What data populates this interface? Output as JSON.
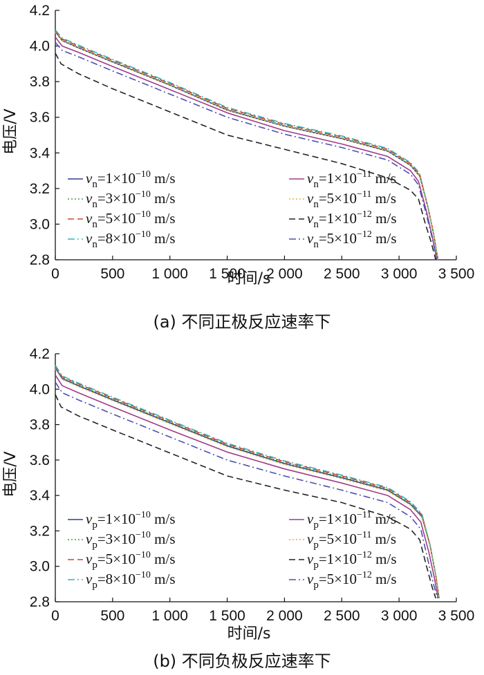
{
  "chart_data": [
    {
      "type": "line",
      "caption": "(a)  不同正极反应速率下",
      "xlabel": "时间/s",
      "ylabel": "电压/V",
      "xlim": [
        0,
        3500
      ],
      "ylim": [
        2.8,
        4.2
      ],
      "xticks": [
        0,
        500,
        1000,
        1500,
        2000,
        2500,
        3000,
        3500
      ],
      "xtick_labels": [
        "0",
        "500",
        "1 000",
        "1 500",
        "2 000",
        "2 500",
        "3 000",
        "3 500"
      ],
      "yticks": [
        2.8,
        3.0,
        3.2,
        3.4,
        3.6,
        3.8,
        4.0,
        4.2
      ],
      "ytick_labels": [
        "2.8",
        "3.0",
        "3.2",
        "3.4",
        "3.6",
        "3.8",
        "4.0",
        "4.2"
      ],
      "legend_position": "lower-left",
      "series": [
        {
          "name": "vn=1×10−10 m/s",
          "sym": "v",
          "sub": "n",
          "coef": "1",
          "exp": "−10",
          "color": "#2a3f8f",
          "dash": "solid",
          "x": [
            0,
            60,
            200,
            500,
            1000,
            1500,
            2000,
            2500,
            2900,
            3100,
            3180,
            3250,
            3300,
            3340
          ],
          "y": [
            4.08,
            4.03,
            3.99,
            3.91,
            3.78,
            3.64,
            3.55,
            3.48,
            3.41,
            3.33,
            3.27,
            3.1,
            2.95,
            2.8
          ]
        },
        {
          "name": "vn=3×10−10 m/s",
          "sym": "v",
          "sub": "n",
          "coef": "3",
          "exp": "−10",
          "color": "#3aa53a",
          "dash": "dot",
          "x": [
            0,
            60,
            200,
            500,
            1000,
            1500,
            2000,
            2500,
            2900,
            3100,
            3180,
            3250,
            3300,
            3340
          ],
          "y": [
            4.08,
            4.035,
            3.995,
            3.915,
            3.785,
            3.645,
            3.555,
            3.485,
            3.415,
            3.335,
            3.275,
            3.1,
            2.95,
            2.8
          ]
        },
        {
          "name": "vn=5×10−10 m/s",
          "sym": "v",
          "sub": "n",
          "coef": "5",
          "exp": "−10",
          "color": "#d94030",
          "dash": "dash",
          "x": [
            0,
            60,
            200,
            500,
            1000,
            1500,
            2000,
            2500,
            2900,
            3100,
            3180,
            3250,
            3300,
            3340
          ],
          "y": [
            4.085,
            4.04,
            4.0,
            3.92,
            3.79,
            3.65,
            3.56,
            3.49,
            3.42,
            3.34,
            3.28,
            3.1,
            2.95,
            2.8
          ]
        },
        {
          "name": "vn=8×10−10 m/s",
          "sym": "v",
          "sub": "n",
          "coef": "8",
          "exp": "−10",
          "color": "#3ab0b8",
          "dash": "dashdot",
          "x": [
            0,
            60,
            200,
            500,
            1000,
            1500,
            2000,
            2500,
            2900,
            3100,
            3180,
            3250,
            3300,
            3340
          ],
          "y": [
            4.09,
            4.045,
            4.005,
            3.925,
            3.795,
            3.655,
            3.565,
            3.495,
            3.425,
            3.345,
            3.285,
            3.1,
            2.95,
            2.8
          ]
        },
        {
          "name": "vn=1×10−11 m/s",
          "sym": "v",
          "sub": "n",
          "coef": "1",
          "exp": "−11",
          "color": "#a03a8a",
          "dash": "solid",
          "x": [
            0,
            60,
            200,
            500,
            1000,
            1500,
            2000,
            2500,
            2900,
            3100,
            3170,
            3240,
            3290,
            3330
          ],
          "y": [
            4.05,
            4.0,
            3.965,
            3.885,
            3.755,
            3.625,
            3.525,
            3.45,
            3.38,
            3.3,
            3.24,
            3.07,
            2.93,
            2.8
          ]
        },
        {
          "name": "vn=5×10−11 m/s",
          "sym": "v",
          "sub": "n",
          "coef": "5",
          "exp": "−11",
          "color": "#e0b030",
          "dash": "dot",
          "x": [
            0,
            60,
            200,
            500,
            1000,
            1500,
            2000,
            2500,
            2900,
            3100,
            3180,
            3250,
            3300,
            3340
          ],
          "y": [
            4.075,
            4.03,
            3.99,
            3.91,
            3.78,
            3.64,
            3.55,
            3.48,
            3.41,
            3.33,
            3.27,
            3.1,
            2.95,
            2.8
          ]
        },
        {
          "name": "vn=1×10−12 m/s",
          "sym": "v",
          "sub": "n",
          "coef": "1",
          "exp": "−12",
          "color": "#222222",
          "dash": "dash",
          "x": [
            0,
            50,
            200,
            500,
            1000,
            1500,
            2000,
            2500,
            2900,
            3100,
            3170,
            3230,
            3280,
            3320
          ],
          "y": [
            3.96,
            3.9,
            3.845,
            3.76,
            3.63,
            3.5,
            3.42,
            3.34,
            3.26,
            3.19,
            3.14,
            3.0,
            2.9,
            2.8
          ]
        },
        {
          "name": "vn=5×10−12 m/s",
          "sym": "v",
          "sub": "n",
          "coef": "5",
          "exp": "−12",
          "color": "#4a50b0",
          "dash": "dashdot",
          "x": [
            0,
            60,
            200,
            500,
            1000,
            1500,
            2000,
            2500,
            2900,
            3100,
            3170,
            3240,
            3290,
            3330
          ],
          "y": [
            4.02,
            3.975,
            3.94,
            3.86,
            3.73,
            3.6,
            3.505,
            3.43,
            3.36,
            3.28,
            3.22,
            3.05,
            2.92,
            2.8
          ]
        }
      ]
    },
    {
      "type": "line",
      "caption": "(b)  不同负极反应速率下",
      "xlabel": "时间/s",
      "ylabel": "电压/V",
      "xlim": [
        0,
        3500
      ],
      "ylim": [
        2.8,
        4.2
      ],
      "xticks": [
        0,
        500,
        1000,
        1500,
        2000,
        2500,
        3000,
        3500
      ],
      "xtick_labels": [
        "0",
        "500",
        "1 000",
        "1 500",
        "2 000",
        "2 500",
        "3 000",
        "3 500"
      ],
      "yticks": [
        2.8,
        3.0,
        3.2,
        3.4,
        3.6,
        3.8,
        4.0,
        4.2
      ],
      "ytick_labels": [
        "2.8",
        "3.0",
        "3.2",
        "3.4",
        "3.6",
        "3.8",
        "4.0",
        "4.2"
      ],
      "legend_position": "lower-left",
      "series": [
        {
          "name": "vp=1×10−10 m/s",
          "sym": "v",
          "sub": "p",
          "coef": "1",
          "exp": "−10",
          "color": "#2a3f8f",
          "dash": "solid",
          "x": [
            0,
            60,
            200,
            500,
            1000,
            1500,
            2000,
            2500,
            2900,
            3100,
            3200,
            3270,
            3320,
            3350
          ],
          "y": [
            4.12,
            4.06,
            4.02,
            3.94,
            3.81,
            3.68,
            3.58,
            3.5,
            3.43,
            3.35,
            3.28,
            3.12,
            2.95,
            2.82
          ]
        },
        {
          "name": "vp=3×10−10 m/s",
          "sym": "v",
          "sub": "p",
          "coef": "3",
          "exp": "−10",
          "color": "#3aa53a",
          "dash": "dot",
          "x": [
            0,
            60,
            200,
            500,
            1000,
            1500,
            2000,
            2500,
            2900,
            3100,
            3200,
            3270,
            3320,
            3350
          ],
          "y": [
            4.125,
            4.065,
            4.025,
            3.945,
            3.815,
            3.685,
            3.585,
            3.505,
            3.435,
            3.355,
            3.285,
            3.12,
            2.95,
            2.82
          ]
        },
        {
          "name": "vp=5×10−10 m/s",
          "sym": "v",
          "sub": "p",
          "coef": "5",
          "exp": "−10",
          "color": "#d94030",
          "dash": "dash",
          "x": [
            0,
            60,
            200,
            500,
            1000,
            1500,
            2000,
            2500,
            2900,
            3100,
            3200,
            3270,
            3320,
            3350
          ],
          "y": [
            4.13,
            4.07,
            4.03,
            3.95,
            3.82,
            3.69,
            3.59,
            3.51,
            3.44,
            3.36,
            3.29,
            3.12,
            2.95,
            2.82
          ]
        },
        {
          "name": "vp=8×10−10 m/s",
          "sym": "v",
          "sub": "p",
          "coef": "8",
          "exp": "−10",
          "color": "#3ab0b8",
          "dash": "dashdot",
          "x": [
            0,
            60,
            200,
            500,
            1000,
            1500,
            2000,
            2500,
            2900,
            3100,
            3200,
            3270,
            3320,
            3350
          ],
          "y": [
            4.135,
            4.075,
            4.035,
            3.955,
            3.825,
            3.695,
            3.595,
            3.515,
            3.445,
            3.365,
            3.295,
            3.12,
            2.95,
            2.82
          ]
        },
        {
          "name": "vp=1×10−11 m/s",
          "sym": "v",
          "sub": "p",
          "coef": "1",
          "exp": "−11",
          "color": "#a03a8a",
          "dash": "solid",
          "x": [
            0,
            60,
            200,
            500,
            1000,
            1500,
            2000,
            2500,
            2900,
            3100,
            3190,
            3260,
            3310,
            3340
          ],
          "y": [
            4.08,
            4.02,
            3.98,
            3.9,
            3.77,
            3.645,
            3.55,
            3.47,
            3.4,
            3.32,
            3.25,
            3.08,
            2.93,
            2.82
          ]
        },
        {
          "name": "vp=5×10−11 m/s",
          "sym": "v",
          "sub": "p",
          "coef": "5",
          "exp": "−11",
          "color": "#e0b030",
          "dash": "dot",
          "x": [
            0,
            60,
            200,
            500,
            1000,
            1500,
            2000,
            2500,
            2900,
            3100,
            3200,
            3270,
            3320,
            3350
          ],
          "y": [
            4.115,
            4.055,
            4.015,
            3.935,
            3.805,
            3.675,
            3.575,
            3.495,
            3.425,
            3.345,
            3.275,
            3.11,
            2.95,
            2.82
          ]
        },
        {
          "name": "vp=1×10−12 m/s",
          "sym": "v",
          "sub": "p",
          "coef": "1",
          "exp": "−12",
          "color": "#222222",
          "dash": "dash",
          "x": [
            0,
            50,
            200,
            500,
            1000,
            1500,
            2000,
            2500,
            2900,
            3100,
            3180,
            3240,
            3290,
            3320
          ],
          "y": [
            3.97,
            3.9,
            3.85,
            3.77,
            3.64,
            3.51,
            3.43,
            3.36,
            3.28,
            3.21,
            3.15,
            3.0,
            2.88,
            2.82
          ]
        },
        {
          "name": "vp=5×10−12 m/s",
          "sym": "v",
          "sub": "p",
          "coef": "5",
          "exp": "−12",
          "color": "#4a50b0",
          "dash": "dashdot",
          "x": [
            0,
            60,
            200,
            500,
            1000,
            1500,
            2000,
            2500,
            2900,
            3100,
            3190,
            3250,
            3300,
            3335
          ],
          "y": [
            4.04,
            3.98,
            3.94,
            3.86,
            3.73,
            3.6,
            3.51,
            3.43,
            3.36,
            3.28,
            3.21,
            3.04,
            2.9,
            2.82
          ]
        }
      ]
    }
  ]
}
